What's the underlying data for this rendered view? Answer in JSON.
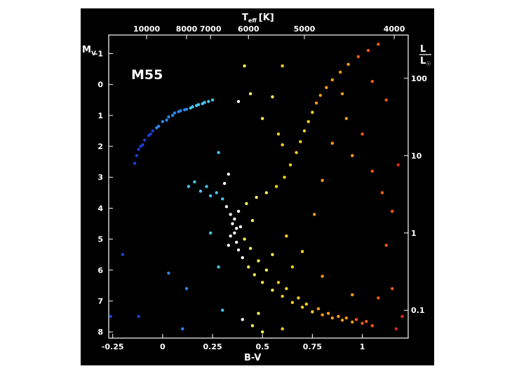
{
  "chart_data": {
    "type": "scatter",
    "title": "",
    "annotations": [
      "M55"
    ],
    "xlabel": "B-V",
    "ylabel": "MV",
    "ylabel_main": "M",
    "ylabel_sub": "V",
    "top_axis_label_main": "T",
    "top_axis_label_sub": "eff",
    "top_axis_label_unit": "[K]",
    "right_axis_label_num": "L",
    "right_axis_label_den": "L",
    "right_axis_label_sym": "☉",
    "xlim": [
      -0.27,
      1.23
    ],
    "ylim": [
      8.2,
      -1.6
    ],
    "x_ticks": [
      -0.25,
      0,
      0.25,
      0.5,
      0.75,
      1
    ],
    "x_tick_labels": [
      "-0.25",
      "0",
      "0.25",
      "0.5",
      "0.75",
      "1"
    ],
    "y_ticks": [
      -1,
      0,
      1,
      2,
      3,
      4,
      5,
      6,
      7,
      8
    ],
    "y_tick_labels": [
      "-1",
      "0",
      "1",
      "2",
      "3",
      "4",
      "5",
      "6",
      "7",
      "8"
    ],
    "top_ticks": [
      {
        "bv": -0.08,
        "label": "10000"
      },
      {
        "bv": 0.12,
        "label": "8000"
      },
      {
        "bv": 0.24,
        "label": "7000"
      },
      {
        "bv": 0.43,
        "label": "6000"
      },
      {
        "bv": 0.71,
        "label": "5000"
      },
      {
        "bv": 1.16,
        "label": "4000"
      }
    ],
    "right_ticks": [
      {
        "mv": -0.2,
        "label": "100"
      },
      {
        "mv": 2.3,
        "label": "10"
      },
      {
        "mv": 4.8,
        "label": "1"
      },
      {
        "mv": 7.3,
        "label": "0.1"
      }
    ],
    "grid": false,
    "color_scale": [
      "#1a3fd6",
      "#2c86f0",
      "#49c6f2",
      "#ffffff",
      "#fff35a",
      "#ffd21f",
      "#ff9c14",
      "#ff5a14",
      "#e52a10"
    ],
    "series": [
      {
        "points": [
          [
            -0.11,
            2.0
          ],
          [
            -0.09,
            1.8
          ],
          [
            -0.07,
            1.65
          ],
          [
            -0.05,
            1.5
          ],
          [
            -0.02,
            1.35
          ],
          [
            0.0,
            1.2
          ],
          [
            0.03,
            1.05
          ],
          [
            0.06,
            0.92
          ],
          [
            0.09,
            0.85
          ],
          [
            0.12,
            0.8
          ],
          [
            0.15,
            0.72
          ],
          [
            0.18,
            0.65
          ],
          [
            0.21,
            0.58
          ],
          [
            0.23,
            0.55
          ],
          [
            -0.12,
            2.1
          ],
          [
            -0.13,
            2.3
          ],
          [
            -0.14,
            2.55
          ],
          [
            -0.1,
            1.95
          ],
          [
            -0.06,
            1.6
          ],
          [
            0.02,
            1.15
          ],
          [
            0.08,
            0.88
          ],
          [
            0.14,
            0.76
          ],
          [
            0.17,
            0.68
          ],
          [
            0.11,
            0.82
          ],
          [
            -0.03,
            1.4
          ],
          [
            0.05,
            1.0
          ],
          [
            0.2,
            0.62
          ],
          [
            0.25,
            0.5
          ],
          [
            0.13,
            3.3
          ],
          [
            0.16,
            3.15
          ],
          [
            0.19,
            3.45
          ],
          [
            0.22,
            3.3
          ],
          [
            0.24,
            3.6
          ],
          [
            0.27,
            3.5
          ],
          [
            0.3,
            3.7
          ],
          [
            0.32,
            3.95
          ],
          [
            0.34,
            4.2
          ],
          [
            0.35,
            4.5
          ],
          [
            0.36,
            4.8
          ],
          [
            0.37,
            5.1
          ],
          [
            0.38,
            5.35
          ],
          [
            0.4,
            5.6
          ],
          [
            0.43,
            5.9
          ],
          [
            0.46,
            6.15
          ],
          [
            0.5,
            6.4
          ],
          [
            0.55,
            6.65
          ],
          [
            0.6,
            6.85
          ],
          [
            0.65,
            7.05
          ],
          [
            0.7,
            7.2
          ],
          [
            0.75,
            7.35
          ],
          [
            0.8,
            7.45
          ],
          [
            0.85,
            7.55
          ],
          [
            0.9,
            7.62
          ],
          [
            0.95,
            7.68
          ],
          [
            1.0,
            7.72
          ],
          [
            1.05,
            7.8
          ],
          [
            0.42,
            3.85
          ],
          [
            0.47,
            3.65
          ],
          [
            0.52,
            3.5
          ],
          [
            0.57,
            3.3
          ],
          [
            0.61,
            3.0
          ],
          [
            0.64,
            2.6
          ],
          [
            0.67,
            2.2
          ],
          [
            0.69,
            1.85
          ],
          [
            0.71,
            1.5
          ],
          [
            0.73,
            1.2
          ],
          [
            0.75,
            0.9
          ],
          [
            0.77,
            0.6
          ],
          [
            0.79,
            0.35
          ],
          [
            0.82,
            0.1
          ],
          [
            0.85,
            -0.15
          ],
          [
            0.89,
            -0.4
          ],
          [
            0.93,
            -0.65
          ],
          [
            0.98,
            -0.9
          ],
          [
            1.03,
            -1.1
          ],
          [
            1.08,
            -1.3
          ],
          [
            0.38,
            4.1
          ],
          [
            0.36,
            4.35
          ],
          [
            0.39,
            4.6
          ],
          [
            0.41,
            5.0
          ],
          [
            0.44,
            5.3
          ],
          [
            0.48,
            5.7
          ],
          [
            0.52,
            6.0
          ],
          [
            0.58,
            6.4
          ],
          [
            0.62,
            6.6
          ],
          [
            0.68,
            6.9
          ],
          [
            0.72,
            7.1
          ],
          [
            0.78,
            7.25
          ],
          [
            0.83,
            7.4
          ],
          [
            0.88,
            7.5
          ],
          [
            0.92,
            7.55
          ],
          [
            0.97,
            7.6
          ],
          [
            1.02,
            7.66
          ],
          [
            0.37,
            4.65
          ],
          [
            0.34,
            4.9
          ],
          [
            0.33,
            5.2
          ],
          [
            0.45,
            4.4
          ],
          [
            0.55,
            5.5
          ],
          [
            0.65,
            5.9
          ],
          [
            0.8,
            6.2
          ],
          [
            0.95,
            6.8
          ],
          [
            1.08,
            6.9
          ],
          [
            1.12,
            5.2
          ],
          [
            1.15,
            4.1
          ],
          [
            1.1,
            3.5
          ],
          [
            1.18,
            2.6
          ],
          [
            1.05,
            2.8
          ],
          [
            0.95,
            2.3
          ],
          [
            1.0,
            1.6
          ],
          [
            0.92,
            1.1
          ],
          [
            0.9,
            0.3
          ],
          [
            0.85,
            1.9
          ],
          [
            0.8,
            3.1
          ],
          [
            0.76,
            4.2
          ],
          [
            0.7,
            5.4
          ],
          [
            0.62,
            4.9
          ],
          [
            0.58,
            1.6
          ],
          [
            0.6,
            -0.6
          ],
          [
            0.55,
            0.4
          ],
          [
            0.5,
            1.1
          ],
          [
            0.6,
            1.95
          ],
          [
            1.05,
            -0.1
          ],
          [
            1.12,
            0.5
          ],
          [
            1.17,
            7.9
          ],
          [
            1.2,
            7.5
          ],
          [
            1.15,
            6.6
          ],
          [
            0.48,
            7.4
          ],
          [
            0.45,
            7.8
          ],
          [
            0.4,
            7.6
          ],
          [
            0.5,
            8.0
          ],
          [
            0.6,
            7.9
          ],
          [
            0.3,
            7.3
          ],
          [
            0.41,
            -0.6
          ],
          [
            0.38,
            0.55
          ],
          [
            0.44,
            0.3
          ],
          [
            0.31,
            3.2
          ],
          [
            0.33,
            2.9
          ],
          [
            0.28,
            2.2
          ],
          [
            0.24,
            4.8
          ],
          [
            0.28,
            5.9
          ],
          [
            0.12,
            6.6
          ],
          [
            0.1,
            7.9
          ],
          [
            0.03,
            6.1
          ],
          [
            -0.2,
            5.5
          ],
          [
            -0.26,
            7.5
          ],
          [
            -0.12,
            7.5
          ]
        ]
      }
    ]
  }
}
